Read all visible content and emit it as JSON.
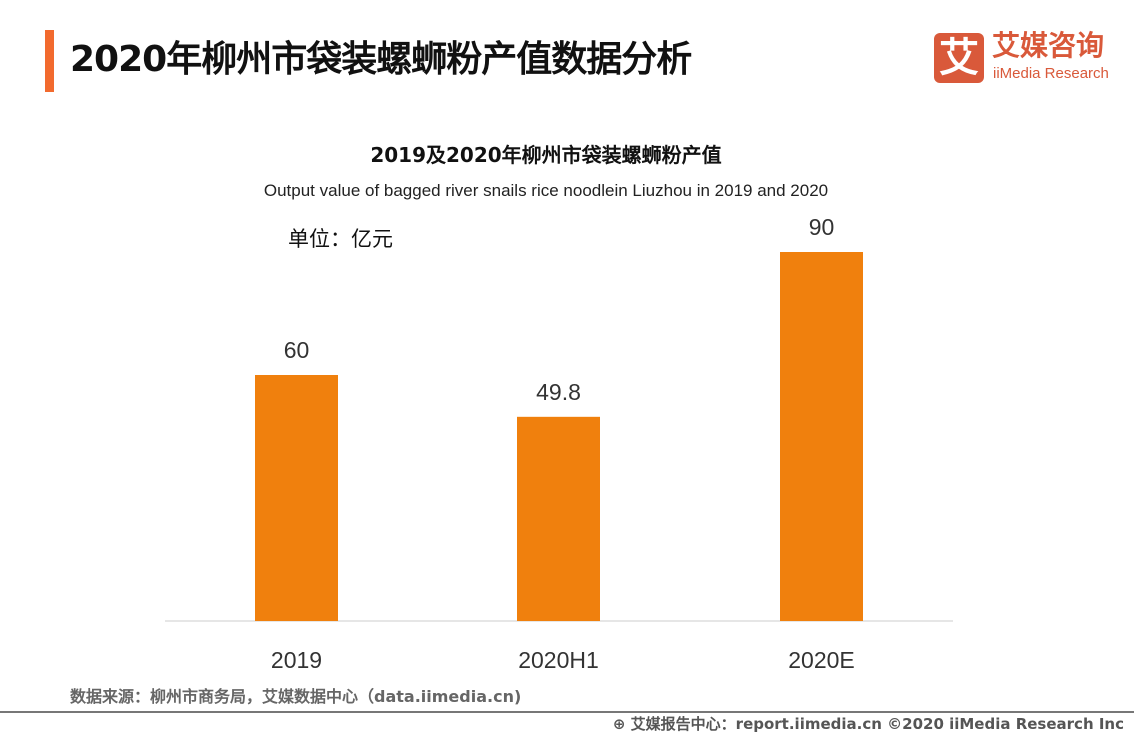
{
  "header": {
    "title": "2020年柳州市袋装螺蛳粉产值数据分析"
  },
  "logo": {
    "mark": "艾",
    "name_cn": "艾媒咨询",
    "name_en": "iiMedia Research",
    "color": "#d9593a"
  },
  "chart_data": {
    "type": "bar",
    "title": "2019及2020年柳州市袋装螺蛳粉产值",
    "subtitle": "Output value of bagged river snails rice noodlein Liuzhou in 2019 and 2020",
    "unit_label": "单位：亿元",
    "categories": [
      "2019",
      "2020H1",
      "2020E"
    ],
    "values": [
      60,
      49.8,
      90
    ],
    "data_labels": [
      "60",
      "49.8",
      "90"
    ],
    "ylim": [
      0,
      90
    ],
    "bar_color": "#f0800d",
    "grid": false,
    "xlabel": "",
    "ylabel": ""
  },
  "footer": {
    "source": "数据来源：柳州市商务局，艾媒数据中心（data.iimedia.cn)",
    "credit": "艾媒报告中心：report.iimedia.cn   ©2020  iiMedia Research  Inc"
  }
}
